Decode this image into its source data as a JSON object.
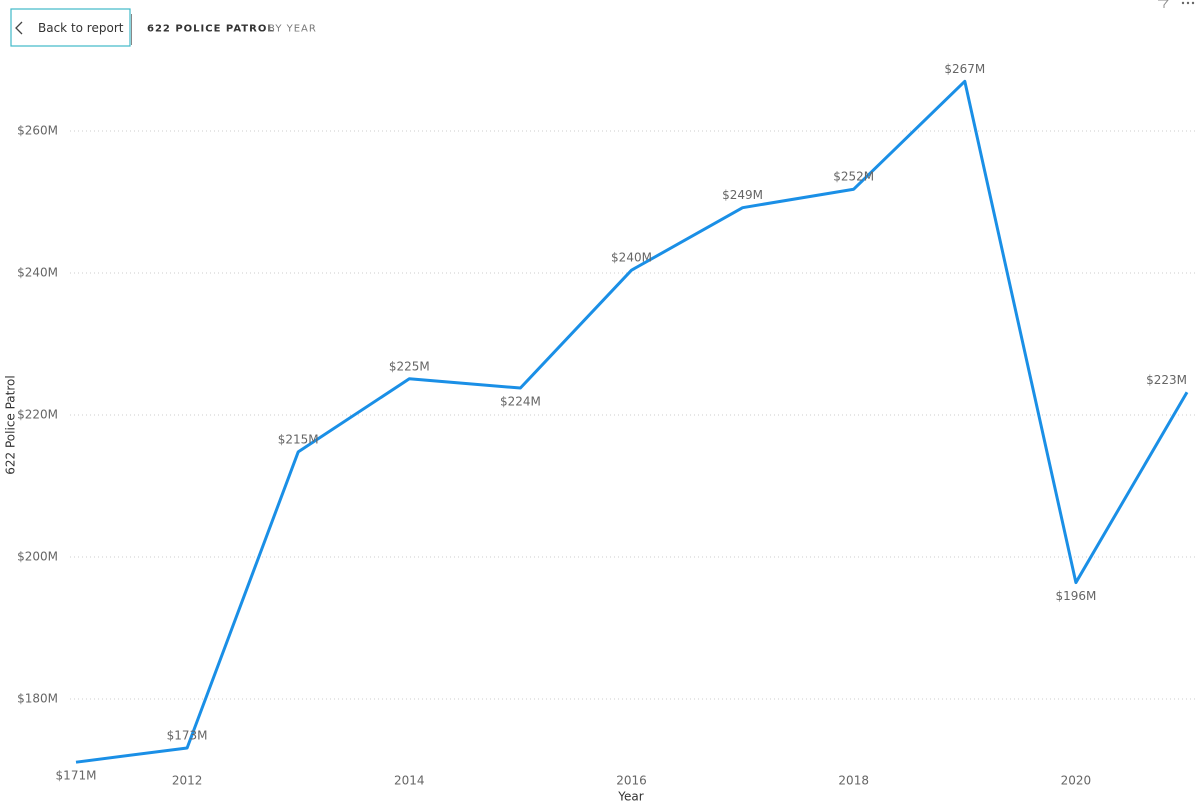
{
  "header": {
    "back_button": "Back to report",
    "title": "622 POLICE PATROL",
    "subtitle": "BY YEAR"
  },
  "chart_data": {
    "type": "line",
    "x_label": "Year",
    "y_label": "622 Police Patrol",
    "x": [
      2011,
      2012,
      2013,
      2014,
      2015,
      2016,
      2017,
      2018,
      2019,
      2020,
      2021
    ],
    "series": [
      {
        "name": "622 Police Patrol",
        "color": "#1a8fe6",
        "values": [
          171100000,
          173100000,
          214800000,
          225100000,
          223800000,
          240400000,
          249200000,
          251800000,
          267000000,
          196400000,
          223200000
        ],
        "value_labels": [
          "$171M",
          "$173M",
          "$215M",
          "$225M",
          "$224M",
          "$240M",
          "$249M",
          "$252M",
          "$267M",
          "$196M",
          "$223M"
        ]
      }
    ],
    "xlim": [
      2011,
      2021
    ],
    "xticks": [
      2012,
      2014,
      2016,
      2018,
      2020
    ],
    "ylim": [
      170000000,
      270000000
    ],
    "yticks": [
      {
        "value": 180000000,
        "label": "$180M"
      },
      {
        "value": 200000000,
        "label": "$200M"
      },
      {
        "value": 220000000,
        "label": "$220M"
      },
      {
        "value": 240000000,
        "label": "$240M"
      },
      {
        "value": 260000000,
        "label": "$260M"
      }
    ],
    "grid": true
  }
}
